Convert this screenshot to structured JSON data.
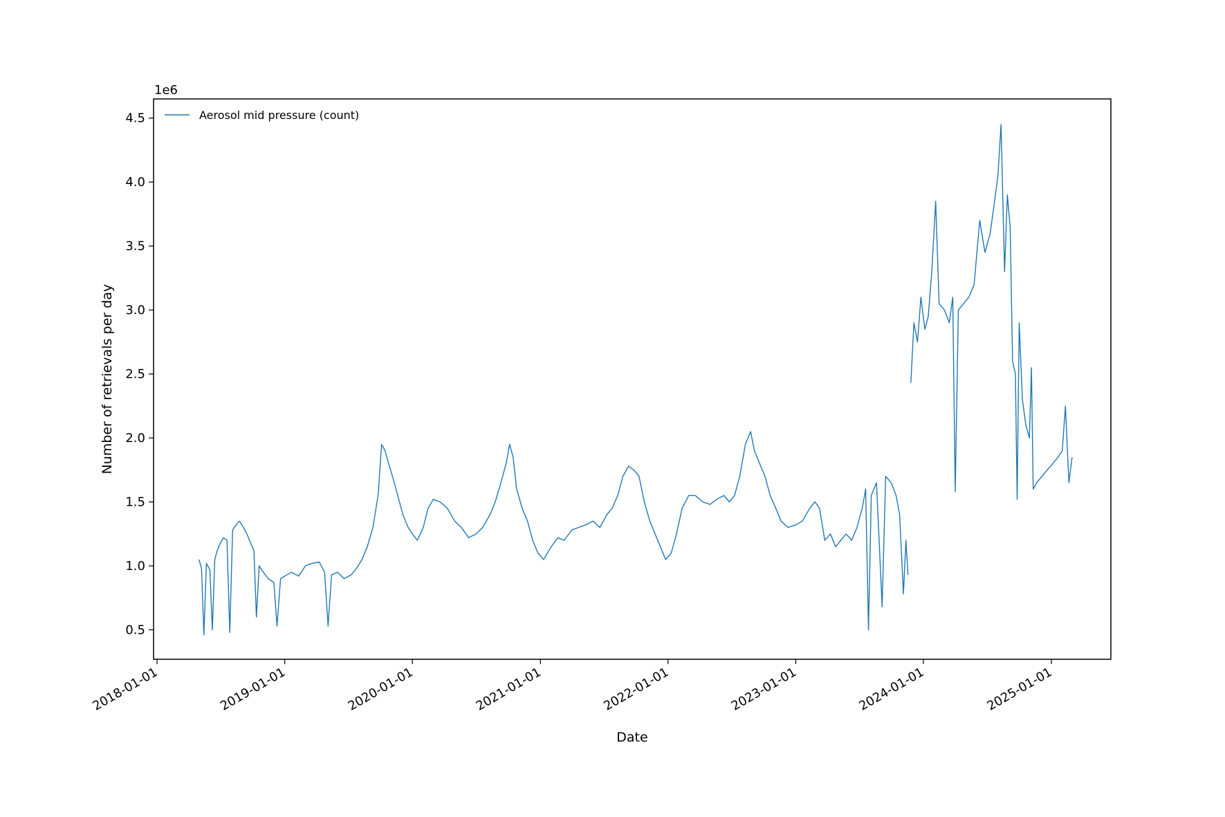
{
  "chart_data": {
    "type": "line",
    "title": "",
    "xlabel": "Date",
    "ylabel": "Number of retrievals per day",
    "y_offset_text": "1e6",
    "y_scale_multiplier": 1000000,
    "xlim": [
      "2017-12-22",
      "2025-06-20"
    ],
    "ylim": [
      0.27,
      4.65
    ],
    "x_tick_labels": [
      "2018-01-01",
      "2019-01-01",
      "2020-01-01",
      "2021-01-01",
      "2022-01-01",
      "2023-01-01",
      "2024-01-01",
      "2025-01-01"
    ],
    "y_tick_values": [
      0.5,
      1.0,
      1.5,
      2.0,
      2.5,
      3.0,
      3.5,
      4.0,
      4.5
    ],
    "y_tick_labels": [
      "0.5",
      "1.0",
      "1.5",
      "2.0",
      "2.5",
      "3.0",
      "3.5",
      "4.0",
      "4.5"
    ],
    "grid": false,
    "legend_position": "top-left",
    "line_color": "#1f77b4",
    "series": [
      {
        "name": "Aerosol mid pressure (count)",
        "points": [
          [
            "2018-05-01",
            1.05
          ],
          [
            "2018-05-08",
            0.98
          ],
          [
            "2018-05-15",
            0.46
          ],
          [
            "2018-05-22",
            1.02
          ],
          [
            "2018-06-01",
            0.97
          ],
          [
            "2018-06-08",
            0.5
          ],
          [
            "2018-06-15",
            1.05
          ],
          [
            "2018-06-22",
            1.12
          ],
          [
            "2018-07-01",
            1.18
          ],
          [
            "2018-07-10",
            1.22
          ],
          [
            "2018-07-20",
            1.2
          ],
          [
            "2018-07-28",
            0.48
          ],
          [
            "2018-08-05",
            1.28
          ],
          [
            "2018-08-15",
            1.32
          ],
          [
            "2018-08-25",
            1.35
          ],
          [
            "2018-09-05",
            1.3
          ],
          [
            "2018-09-15",
            1.25
          ],
          [
            "2018-09-25",
            1.18
          ],
          [
            "2018-10-05",
            1.12
          ],
          [
            "2018-10-12",
            0.6
          ],
          [
            "2018-10-20",
            1.0
          ],
          [
            "2018-11-01",
            0.95
          ],
          [
            "2018-11-15",
            0.9
          ],
          [
            "2018-12-01",
            0.87
          ],
          [
            "2018-12-10",
            0.53
          ],
          [
            "2018-12-20",
            0.9
          ],
          [
            "2019-01-01",
            0.92
          ],
          [
            "2019-01-20",
            0.95
          ],
          [
            "2019-02-10",
            0.92
          ],
          [
            "2019-03-01",
            1.0
          ],
          [
            "2019-03-20",
            1.02
          ],
          [
            "2019-04-10",
            1.03
          ],
          [
            "2019-04-25",
            0.95
          ],
          [
            "2019-05-05",
            0.53
          ],
          [
            "2019-05-15",
            0.93
          ],
          [
            "2019-06-01",
            0.95
          ],
          [
            "2019-06-20",
            0.9
          ],
          [
            "2019-07-10",
            0.93
          ],
          [
            "2019-07-25",
            0.98
          ],
          [
            "2019-08-10",
            1.05
          ],
          [
            "2019-08-25",
            1.15
          ],
          [
            "2019-09-10",
            1.3
          ],
          [
            "2019-09-25",
            1.55
          ],
          [
            "2019-10-05",
            1.95
          ],
          [
            "2019-10-15",
            1.9
          ],
          [
            "2019-10-25",
            1.8
          ],
          [
            "2019-11-05",
            1.7
          ],
          [
            "2019-11-20",
            1.55
          ],
          [
            "2019-12-05",
            1.4
          ],
          [
            "2019-12-20",
            1.3
          ],
          [
            "2020-01-01",
            1.25
          ],
          [
            "2020-01-15",
            1.2
          ],
          [
            "2020-02-01",
            1.3
          ],
          [
            "2020-02-15",
            1.45
          ],
          [
            "2020-03-01",
            1.52
          ],
          [
            "2020-03-20",
            1.5
          ],
          [
            "2020-04-10",
            1.45
          ],
          [
            "2020-05-01",
            1.35
          ],
          [
            "2020-05-20",
            1.3
          ],
          [
            "2020-06-10",
            1.22
          ],
          [
            "2020-07-01",
            1.25
          ],
          [
            "2020-07-20",
            1.3
          ],
          [
            "2020-08-10",
            1.4
          ],
          [
            "2020-08-25",
            1.5
          ],
          [
            "2020-09-10",
            1.65
          ],
          [
            "2020-09-25",
            1.8
          ],
          [
            "2020-10-05",
            1.95
          ],
          [
            "2020-10-15",
            1.85
          ],
          [
            "2020-10-25",
            1.6
          ],
          [
            "2020-11-10",
            1.45
          ],
          [
            "2020-11-25",
            1.35
          ],
          [
            "2020-12-10",
            1.2
          ],
          [
            "2020-12-25",
            1.1
          ],
          [
            "2021-01-10",
            1.05
          ],
          [
            "2021-02-01",
            1.15
          ],
          [
            "2021-02-20",
            1.22
          ],
          [
            "2021-03-10",
            1.2
          ],
          [
            "2021-04-01",
            1.28
          ],
          [
            "2021-04-20",
            1.3
          ],
          [
            "2021-05-10",
            1.32
          ],
          [
            "2021-06-01",
            1.35
          ],
          [
            "2021-06-20",
            1.3
          ],
          [
            "2021-07-10",
            1.4
          ],
          [
            "2021-07-25",
            1.45
          ],
          [
            "2021-08-10",
            1.55
          ],
          [
            "2021-08-25",
            1.7
          ],
          [
            "2021-09-10",
            1.78
          ],
          [
            "2021-09-25",
            1.75
          ],
          [
            "2021-10-10",
            1.7
          ],
          [
            "2021-10-25",
            1.5
          ],
          [
            "2021-11-10",
            1.35
          ],
          [
            "2021-11-25",
            1.25
          ],
          [
            "2021-12-10",
            1.15
          ],
          [
            "2021-12-25",
            1.05
          ],
          [
            "2022-01-10",
            1.1
          ],
          [
            "2022-01-25",
            1.25
          ],
          [
            "2022-02-10",
            1.45
          ],
          [
            "2022-03-01",
            1.55
          ],
          [
            "2022-03-20",
            1.55
          ],
          [
            "2022-04-10",
            1.5
          ],
          [
            "2022-05-01",
            1.48
          ],
          [
            "2022-05-20",
            1.52
          ],
          [
            "2022-06-10",
            1.55
          ],
          [
            "2022-06-25",
            1.5
          ],
          [
            "2022-07-10",
            1.55
          ],
          [
            "2022-07-25",
            1.7
          ],
          [
            "2022-08-10",
            1.95
          ],
          [
            "2022-08-25",
            2.05
          ],
          [
            "2022-09-05",
            1.9
          ],
          [
            "2022-09-20",
            1.8
          ],
          [
            "2022-10-05",
            1.7
          ],
          [
            "2022-10-20",
            1.55
          ],
          [
            "2022-11-05",
            1.45
          ],
          [
            "2022-11-20",
            1.35
          ],
          [
            "2022-12-10",
            1.3
          ],
          [
            "2023-01-01",
            1.32
          ],
          [
            "2023-01-20",
            1.35
          ],
          [
            "2023-02-10",
            1.45
          ],
          [
            "2023-02-25",
            1.5
          ],
          [
            "2023-03-10",
            1.45
          ],
          [
            "2023-03-25",
            1.2
          ],
          [
            "2023-04-10",
            1.25
          ],
          [
            "2023-04-25",
            1.15
          ],
          [
            "2023-05-10",
            1.2
          ],
          [
            "2023-05-25",
            1.25
          ],
          [
            "2023-06-10",
            1.2
          ],
          [
            "2023-06-25",
            1.3
          ],
          [
            "2023-07-10",
            1.45
          ],
          [
            "2023-07-20",
            1.6
          ],
          [
            "2023-07-28",
            0.5
          ],
          [
            "2023-08-05",
            1.55
          ],
          [
            "2023-08-20",
            1.65
          ],
          [
            "2023-09-05",
            0.68
          ],
          [
            "2023-09-15",
            1.7
          ],
          [
            "2023-10-01",
            1.65
          ],
          [
            "2023-10-15",
            1.55
          ],
          [
            "2023-10-25",
            1.4
          ],
          [
            "2023-11-05",
            0.78
          ],
          [
            "2023-11-12",
            1.2
          ],
          [
            "2023-11-18",
            0.93
          ],
          [
            "2023-11-25",
            null
          ],
          [
            "2023-11-26",
            2.43
          ],
          [
            "2023-12-05",
            2.9
          ],
          [
            "2023-12-15",
            2.75
          ],
          [
            "2023-12-25",
            3.1
          ],
          [
            "2024-01-05",
            2.85
          ],
          [
            "2024-01-15",
            2.95
          ],
          [
            "2024-01-25",
            3.3
          ],
          [
            "2024-02-05",
            3.85
          ],
          [
            "2024-02-15",
            3.05
          ],
          [
            "2024-03-01",
            3.0
          ],
          [
            "2024-03-15",
            2.9
          ],
          [
            "2024-03-25",
            3.1
          ],
          [
            "2024-04-01",
            1.58
          ],
          [
            "2024-04-10",
            3.0
          ],
          [
            "2024-04-25",
            3.05
          ],
          [
            "2024-05-10",
            3.1
          ],
          [
            "2024-05-25",
            3.2
          ],
          [
            "2024-06-10",
            3.7
          ],
          [
            "2024-06-25",
            3.45
          ],
          [
            "2024-07-10",
            3.6
          ],
          [
            "2024-07-20",
            3.8
          ],
          [
            "2024-08-01",
            4.05
          ],
          [
            "2024-08-10",
            4.45
          ],
          [
            "2024-08-20",
            3.3
          ],
          [
            "2024-08-28",
            3.9
          ],
          [
            "2024-09-05",
            3.65
          ],
          [
            "2024-09-12",
            2.6
          ],
          [
            "2024-09-20",
            2.5
          ],
          [
            "2024-09-25",
            1.52
          ],
          [
            "2024-10-01",
            2.9
          ],
          [
            "2024-10-10",
            2.3
          ],
          [
            "2024-10-20",
            2.1
          ],
          [
            "2024-10-30",
            2.0
          ],
          [
            "2024-11-05",
            2.55
          ],
          [
            "2024-11-10",
            1.6
          ],
          [
            "2024-11-20",
            1.65
          ],
          [
            "2024-12-05",
            1.7
          ],
          [
            "2024-12-20",
            1.75
          ],
          [
            "2025-01-05",
            1.8
          ],
          [
            "2025-01-20",
            1.85
          ],
          [
            "2025-02-01",
            1.9
          ],
          [
            "2025-02-10",
            2.25
          ],
          [
            "2025-02-20",
            1.65
          ],
          [
            "2025-03-01",
            1.85
          ]
        ]
      }
    ]
  }
}
